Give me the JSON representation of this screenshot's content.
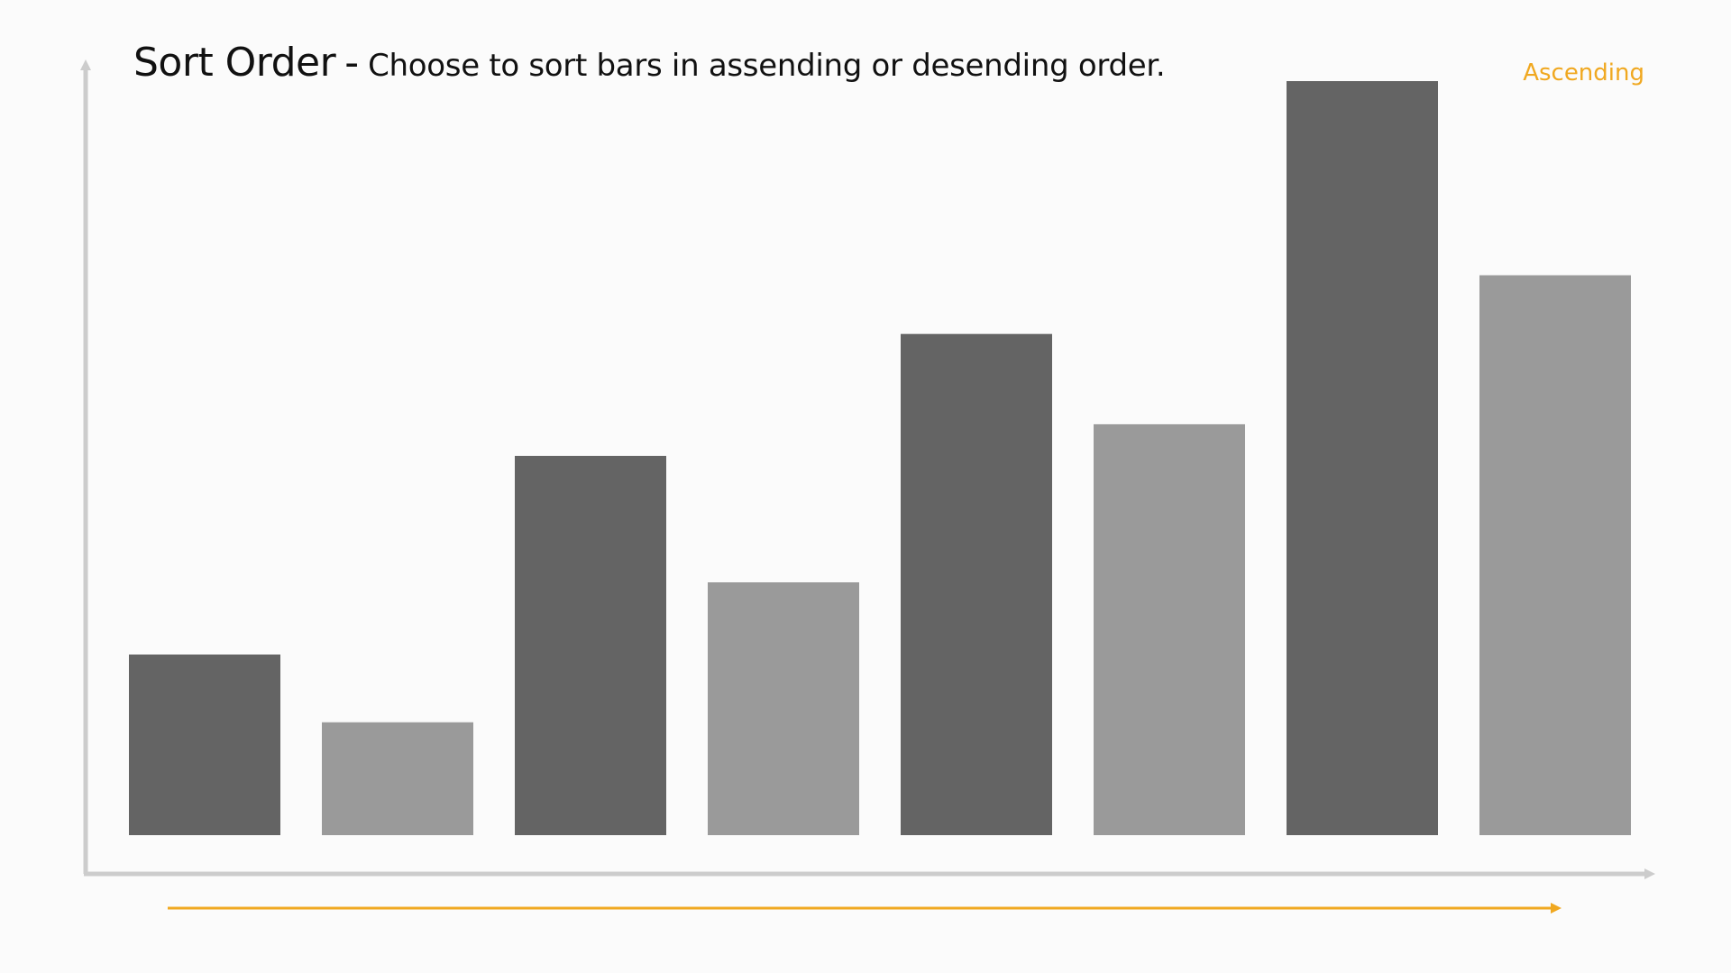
{
  "header": {
    "title": "Sort Order",
    "separator": "-",
    "subtitle": "Choose to sort bars in assending or desending order."
  },
  "controls": {
    "sort_label": "Ascending",
    "sort_color": "#f0a820"
  },
  "colors": {
    "axis": "#cccccc",
    "bar_dark": "#646464",
    "bar_light": "#9a9a9a",
    "direction_arrow": "#f0a820",
    "background": "#fbfbfb"
  },
  "chart_data": {
    "type": "bar",
    "values": [
      20,
      12.5,
      42,
      28,
      55.5,
      45.5,
      83.5,
      62
    ],
    "ylim": [
      0,
      84
    ],
    "colors": [
      "#646464",
      "#9a9a9a",
      "#646464",
      "#9a9a9a",
      "#646464",
      "#9a9a9a",
      "#646464",
      "#9a9a9a"
    ],
    "grid": false,
    "legend": "none",
    "title": "Sort Order",
    "subtitle": "Choose to sort bars in assending or desending order.",
    "direction": "ascending"
  }
}
